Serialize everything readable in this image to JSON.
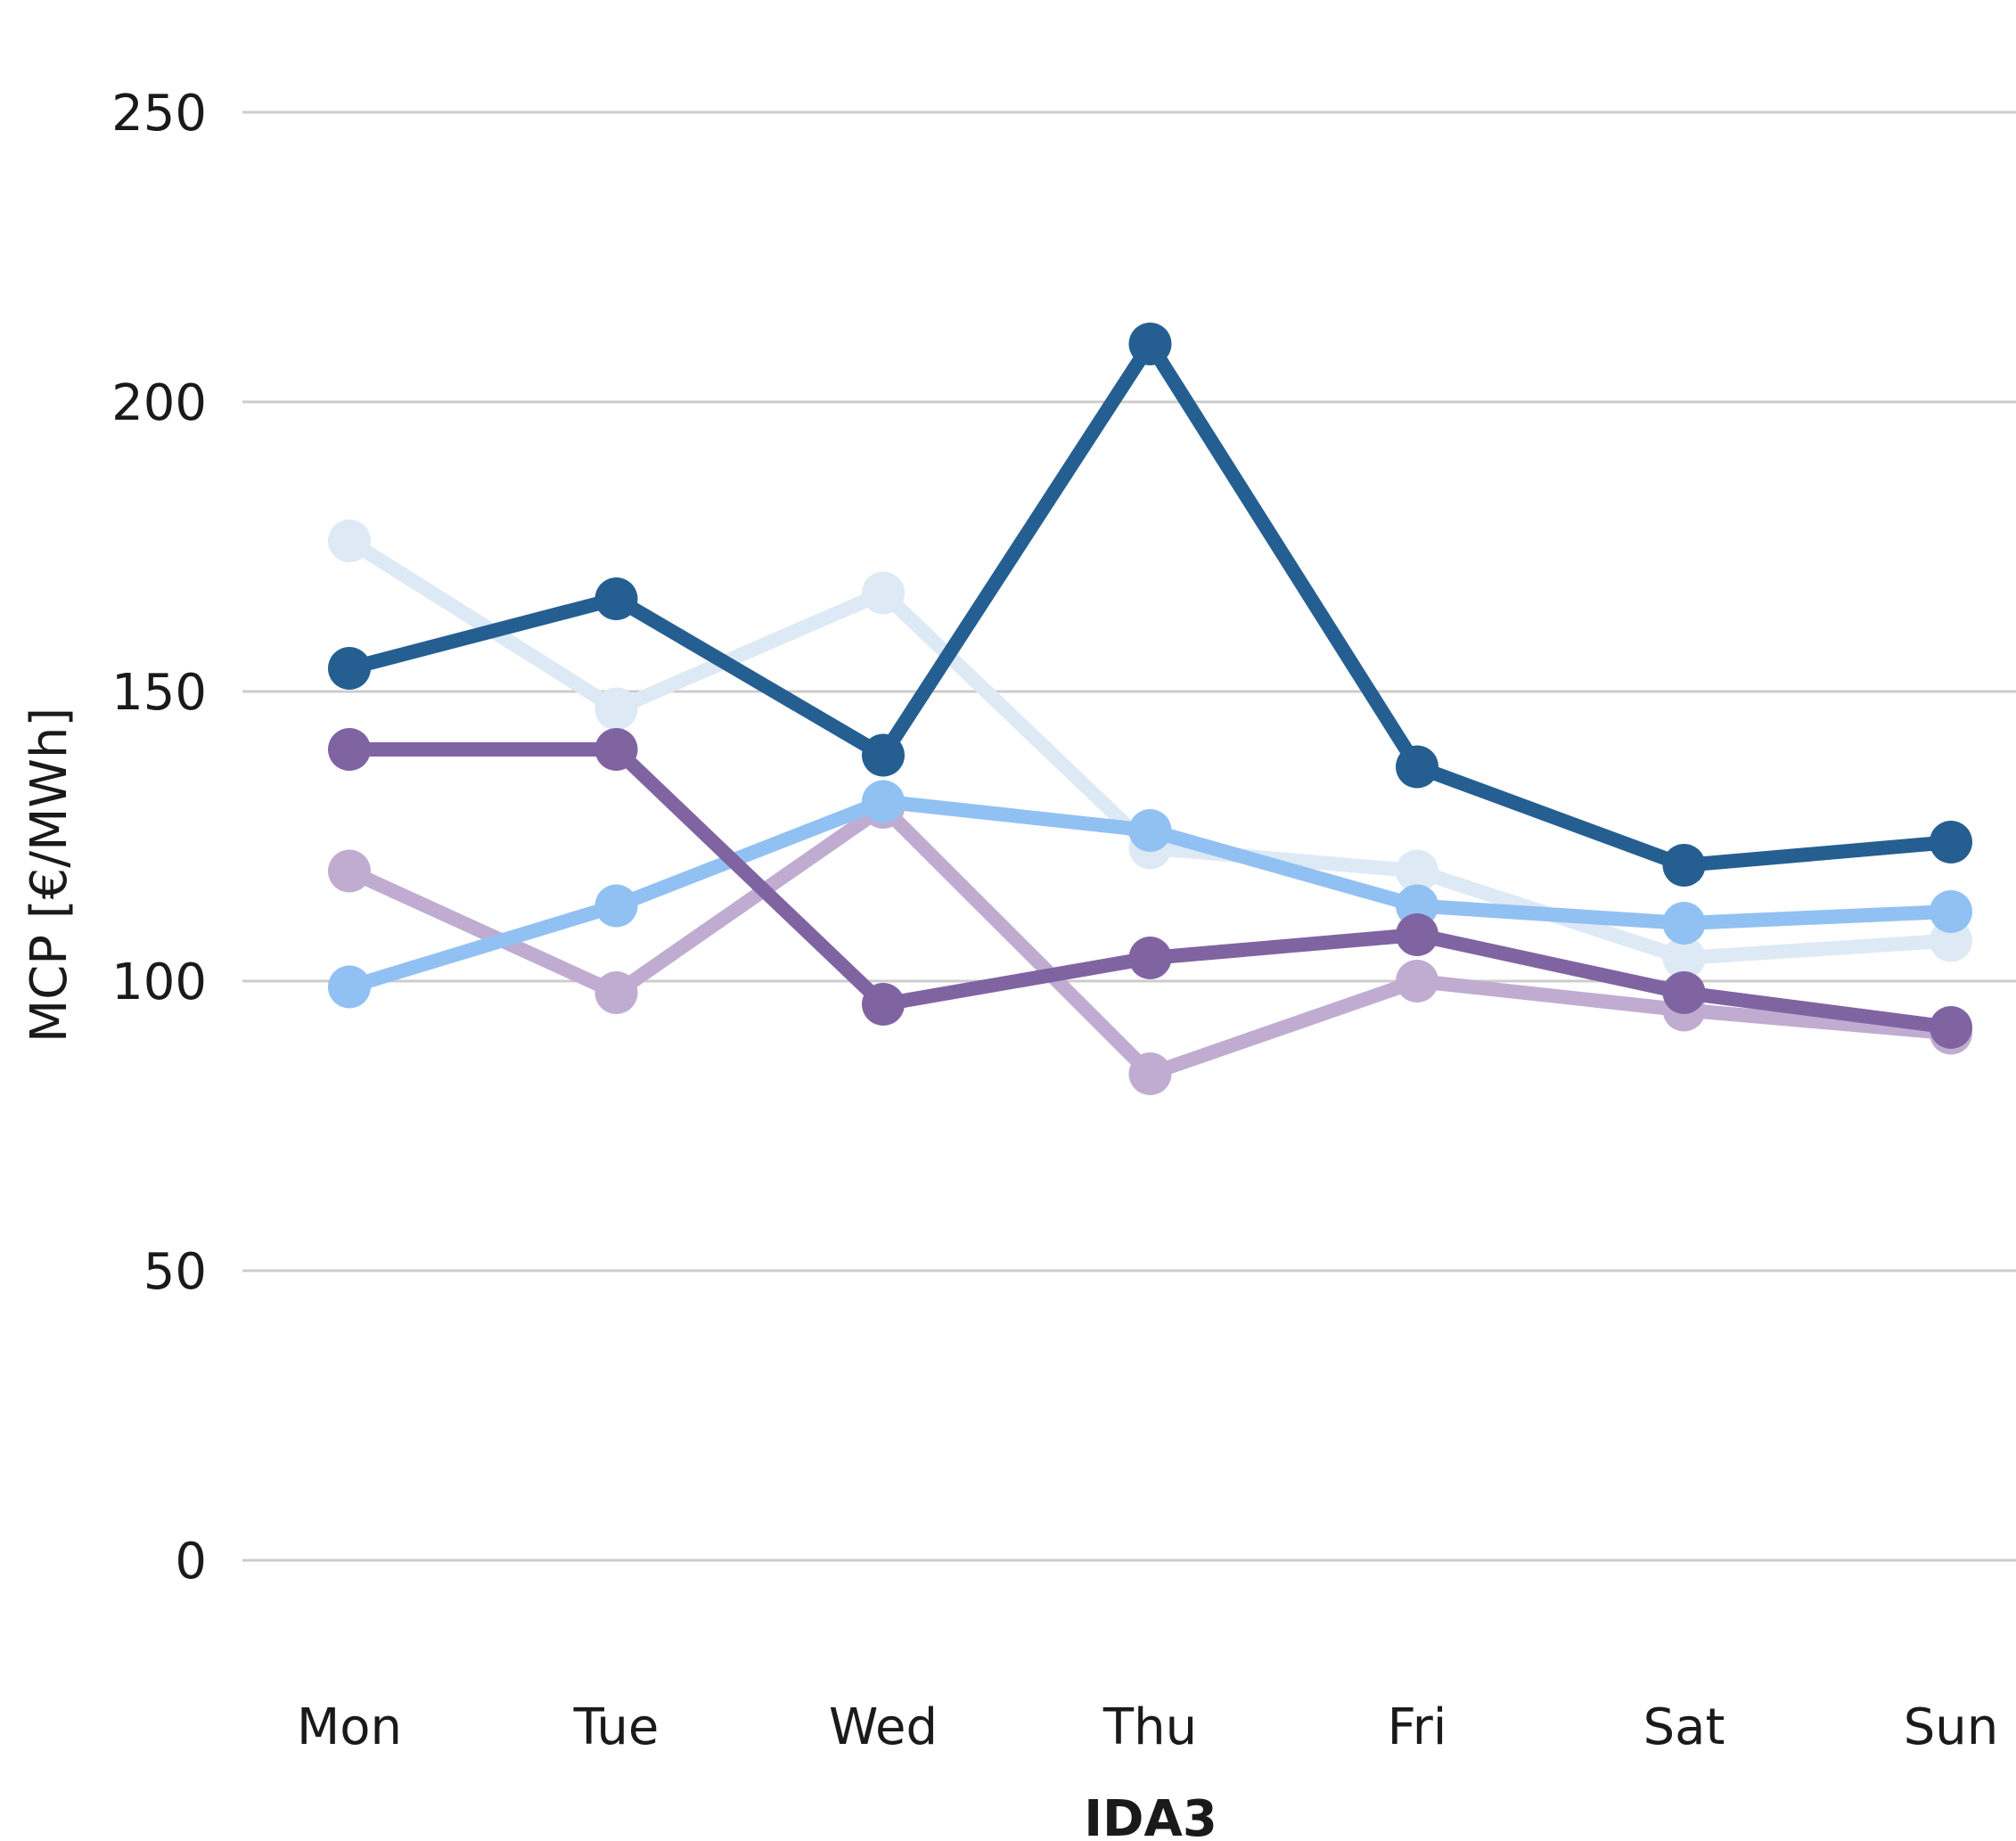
{
  "chart_data": {
    "type": "line",
    "categories": [
      "Mon",
      "Tue",
      "Wed",
      "Thu",
      "Fri",
      "Sat",
      "Sun"
    ],
    "xlabel": "IDA3",
    "ylabel": "MCP [€/MWh]",
    "ylim": [
      0,
      250
    ],
    "yticks": [
      0,
      50,
      100,
      150,
      200,
      250
    ],
    "grid": true,
    "series": [
      {
        "color": "#dde9f5",
        "values": [
          176,
          147,
          167,
          123,
          119,
          104,
          107
        ]
      },
      {
        "color": "#c0acd1",
        "values": [
          119,
          98,
          130,
          84,
          100,
          95,
          91
        ]
      },
      {
        "color": "#91c1f2",
        "values": [
          99,
          113,
          131,
          126,
          113,
          110,
          112
        ]
      },
      {
        "color": "#8064a2",
        "values": [
          140,
          140,
          96,
          104,
          108,
          98,
          92
        ]
      },
      {
        "color": "#255f91",
        "values": [
          154,
          166,
          139,
          210,
          137,
          120,
          124
        ]
      }
    ]
  }
}
